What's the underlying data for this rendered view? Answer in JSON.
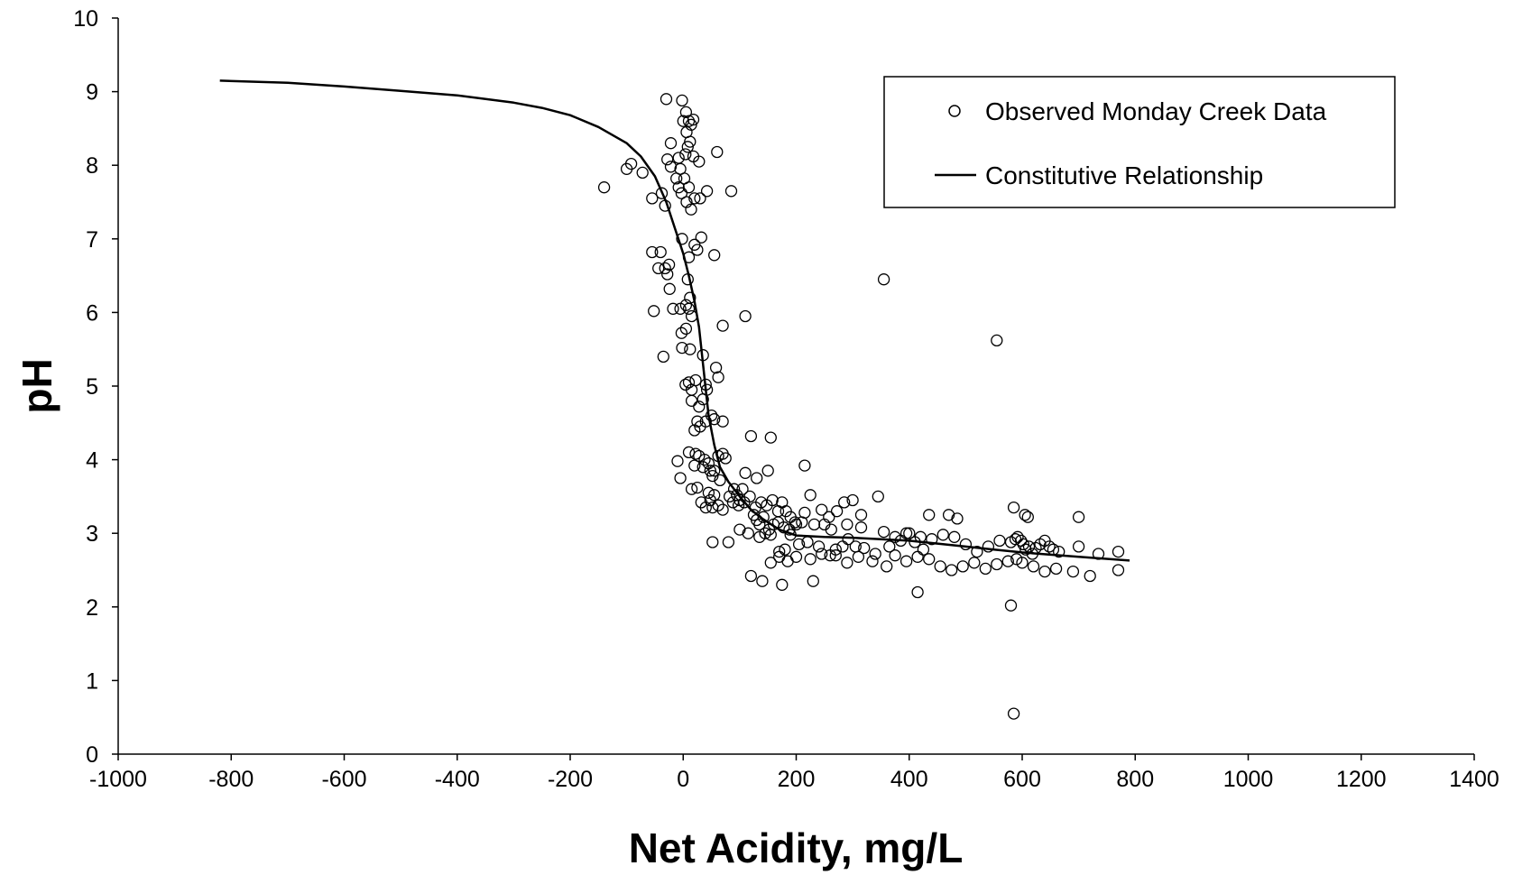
{
  "chart_data": {
    "type": "scatter",
    "title": "",
    "xlabel": "Net Acidity, mg/L",
    "ylabel": "pH",
    "xlim": [
      -1000,
      1400
    ],
    "ylim": [
      0,
      10
    ],
    "xticks": [
      -1000,
      -800,
      -600,
      -400,
      -200,
      0,
      200,
      400,
      600,
      800,
      1000,
      1200,
      1400
    ],
    "yticks": [
      0,
      1,
      2,
      3,
      4,
      5,
      6,
      7,
      8,
      9,
      10
    ],
    "grid": false,
    "legend_position": "top-right",
    "series": [
      {
        "name": "Observed Monday Creek Data",
        "type": "scatter",
        "marker": "open-circle",
        "points": [
          [
            -140,
            7.7
          ],
          [
            -100,
            7.95
          ],
          [
            -92,
            8.02
          ],
          [
            -72,
            7.9
          ],
          [
            -55,
            7.55
          ],
          [
            -38,
            7.62
          ],
          [
            -32,
            7.45
          ],
          [
            -28,
            8.08
          ],
          [
            -22,
            7.98
          ],
          [
            -12,
            7.82
          ],
          [
            -8,
            7.7
          ],
          [
            -3,
            7.62
          ],
          [
            2,
            7.82
          ],
          [
            6,
            7.5
          ],
          [
            10,
            7.7
          ],
          [
            14,
            7.4
          ],
          [
            20,
            7.55
          ],
          [
            30,
            7.55
          ],
          [
            42,
            7.65
          ],
          [
            85,
            7.65
          ],
          [
            -30,
            8.9
          ],
          [
            -2,
            8.88
          ],
          [
            5,
            8.72
          ],
          [
            10,
            8.6
          ],
          [
            14,
            8.55
          ],
          [
            18,
            8.62
          ],
          [
            0,
            8.6
          ],
          [
            6,
            8.45
          ],
          [
            -22,
            8.3
          ],
          [
            8,
            8.25
          ],
          [
            12,
            8.32
          ],
          [
            4,
            8.15
          ],
          [
            -8,
            8.1
          ],
          [
            -5,
            7.95
          ],
          [
            18,
            8.12
          ],
          [
            28,
            8.05
          ],
          [
            60,
            8.18
          ],
          [
            -55,
            6.82
          ],
          [
            -40,
            6.82
          ],
          [
            -32,
            6.6
          ],
          [
            -25,
            6.65
          ],
          [
            -28,
            6.52
          ],
          [
            -24,
            6.32
          ],
          [
            -44,
            6.6
          ],
          [
            -2,
            7.0
          ],
          [
            10,
            6.75
          ],
          [
            20,
            6.92
          ],
          [
            25,
            6.85
          ],
          [
            32,
            7.02
          ],
          [
            55,
            6.78
          ],
          [
            8,
            6.45
          ],
          [
            12,
            6.2
          ],
          [
            -52,
            6.02
          ],
          [
            -18,
            6.05
          ],
          [
            -5,
            6.05
          ],
          [
            5,
            6.1
          ],
          [
            10,
            6.05
          ],
          [
            15,
            5.95
          ],
          [
            110,
            5.95
          ],
          [
            70,
            5.82
          ],
          [
            -3,
            5.72
          ],
          [
            5,
            5.78
          ],
          [
            -35,
            5.4
          ],
          [
            -2,
            5.52
          ],
          [
            12,
            5.5
          ],
          [
            35,
            5.42
          ],
          [
            4,
            5.02
          ],
          [
            10,
            5.05
          ],
          [
            15,
            4.95
          ],
          [
            22,
            5.08
          ],
          [
            40,
            5.02
          ],
          [
            42,
            4.95
          ],
          [
            58,
            5.25
          ],
          [
            62,
            5.12
          ],
          [
            15,
            4.8
          ],
          [
            28,
            4.72
          ],
          [
            35,
            4.82
          ],
          [
            25,
            4.52
          ],
          [
            40,
            4.52
          ],
          [
            50,
            4.6
          ],
          [
            55,
            4.55
          ],
          [
            70,
            4.52
          ],
          [
            20,
            4.4
          ],
          [
            30,
            4.45
          ],
          [
            -10,
            3.98
          ],
          [
            -5,
            3.75
          ],
          [
            10,
            4.1
          ],
          [
            22,
            4.08
          ],
          [
            28,
            4.05
          ],
          [
            38,
            4.0
          ],
          [
            45,
            3.95
          ],
          [
            55,
            3.85
          ],
          [
            62,
            4.05
          ],
          [
            75,
            4.02
          ],
          [
            70,
            4.08
          ],
          [
            20,
            3.92
          ],
          [
            35,
            3.9
          ],
          [
            48,
            3.85
          ],
          [
            52,
            3.78
          ],
          [
            15,
            3.6
          ],
          [
            25,
            3.62
          ],
          [
            45,
            3.55
          ],
          [
            55,
            3.52
          ],
          [
            65,
            3.72
          ],
          [
            90,
            3.6
          ],
          [
            95,
            3.52
          ],
          [
            100,
            3.45
          ],
          [
            105,
            3.6
          ],
          [
            110,
            3.82
          ],
          [
            130,
            3.75
          ],
          [
            150,
            3.85
          ],
          [
            120,
            4.32
          ],
          [
            155,
            4.3
          ],
          [
            215,
            3.92
          ],
          [
            32,
            3.42
          ],
          [
            40,
            3.35
          ],
          [
            48,
            3.45
          ],
          [
            52,
            3.35
          ],
          [
            62,
            3.38
          ],
          [
            70,
            3.32
          ],
          [
            82,
            3.5
          ],
          [
            88,
            3.42
          ],
          [
            98,
            3.38
          ],
          [
            108,
            3.42
          ],
          [
            118,
            3.5
          ],
          [
            128,
            3.35
          ],
          [
            138,
            3.42
          ],
          [
            148,
            3.38
          ],
          [
            158,
            3.45
          ],
          [
            168,
            3.3
          ],
          [
            175,
            3.42
          ],
          [
            182,
            3.3
          ],
          [
            190,
            3.22
          ],
          [
            198,
            3.15
          ],
          [
            215,
            3.28
          ],
          [
            225,
            3.52
          ],
          [
            245,
            3.32
          ],
          [
            258,
            3.22
          ],
          [
            272,
            3.3
          ],
          [
            285,
            3.42
          ],
          [
            300,
            3.45
          ],
          [
            315,
            3.25
          ],
          [
            345,
            3.5
          ],
          [
            125,
            3.25
          ],
          [
            130,
            3.18
          ],
          [
            135,
            3.12
          ],
          [
            142,
            3.22
          ],
          [
            152,
            3.05
          ],
          [
            160,
            3.12
          ],
          [
            168,
            3.15
          ],
          [
            178,
            3.08
          ],
          [
            188,
            3.05
          ],
          [
            200,
            3.12
          ],
          [
            210,
            3.15
          ],
          [
            232,
            3.12
          ],
          [
            250,
            3.12
          ],
          [
            262,
            3.05
          ],
          [
            290,
            3.12
          ],
          [
            315,
            3.08
          ],
          [
            355,
            3.02
          ],
          [
            52,
            2.88
          ],
          [
            80,
            2.88
          ],
          [
            100,
            3.05
          ],
          [
            115,
            3.0
          ],
          [
            135,
            2.95
          ],
          [
            145,
            3.0
          ],
          [
            155,
            2.98
          ],
          [
            170,
            2.75
          ],
          [
            180,
            2.78
          ],
          [
            190,
            2.98
          ],
          [
            205,
            2.85
          ],
          [
            220,
            2.88
          ],
          [
            240,
            2.82
          ],
          [
            260,
            2.7
          ],
          [
            270,
            2.78
          ],
          [
            282,
            2.82
          ],
          [
            292,
            2.92
          ],
          [
            305,
            2.82
          ],
          [
            320,
            2.8
          ],
          [
            340,
            2.72
          ],
          [
            365,
            2.82
          ],
          [
            375,
            2.95
          ],
          [
            385,
            2.9
          ],
          [
            395,
            3.0
          ],
          [
            410,
            2.88
          ],
          [
            425,
            2.78
          ],
          [
            440,
            2.92
          ],
          [
            460,
            2.98
          ],
          [
            480,
            2.95
          ],
          [
            500,
            2.85
          ],
          [
            520,
            2.75
          ],
          [
            540,
            2.82
          ],
          [
            560,
            2.9
          ],
          [
            580,
            2.88
          ],
          [
            588,
            2.92
          ],
          [
            592,
            2.95
          ],
          [
            598,
            2.9
          ],
          [
            602,
            2.85
          ],
          [
            606,
            2.78
          ],
          [
            612,
            2.82
          ],
          [
            618,
            2.72
          ],
          [
            624,
            2.8
          ],
          [
            632,
            2.85
          ],
          [
            640,
            2.9
          ],
          [
            648,
            2.82
          ],
          [
            655,
            2.78
          ],
          [
            665,
            2.75
          ],
          [
            700,
            2.82
          ],
          [
            735,
            2.72
          ],
          [
            770,
            2.75
          ],
          [
            770,
            2.5
          ],
          [
            720,
            2.42
          ],
          [
            690,
            2.48
          ],
          [
            660,
            2.52
          ],
          [
            640,
            2.48
          ],
          [
            620,
            2.55
          ],
          [
            600,
            2.6
          ],
          [
            590,
            2.65
          ],
          [
            575,
            2.62
          ],
          [
            555,
            2.58
          ],
          [
            535,
            2.52
          ],
          [
            515,
            2.6
          ],
          [
            495,
            2.55
          ],
          [
            475,
            2.5
          ],
          [
            455,
            2.55
          ],
          [
            435,
            2.65
          ],
          [
            415,
            2.68
          ],
          [
            395,
            2.62
          ],
          [
            375,
            2.7
          ],
          [
            360,
            2.55
          ],
          [
            335,
            2.62
          ],
          [
            310,
            2.68
          ],
          [
            290,
            2.6
          ],
          [
            270,
            2.7
          ],
          [
            245,
            2.72
          ],
          [
            225,
            2.65
          ],
          [
            200,
            2.68
          ],
          [
            185,
            2.62
          ],
          [
            170,
            2.68
          ],
          [
            155,
            2.6
          ],
          [
            140,
            2.35
          ],
          [
            120,
            2.42
          ],
          [
            175,
            2.3
          ],
          [
            230,
            2.35
          ],
          [
            415,
            2.2
          ],
          [
            585,
            3.35
          ],
          [
            605,
            3.25
          ],
          [
            610,
            3.22
          ],
          [
            700,
            3.22
          ],
          [
            435,
            3.25
          ],
          [
            470,
            3.25
          ],
          [
            485,
            3.2
          ],
          [
            400,
            3.0
          ],
          [
            420,
            2.95
          ],
          [
            355,
            6.45
          ],
          [
            555,
            5.62
          ],
          [
            580,
            2.02
          ],
          [
            585,
            0.55
          ]
        ]
      },
      {
        "name": "Constitutive Relationship",
        "type": "line",
        "points": [
          [
            -820,
            9.15
          ],
          [
            -700,
            9.12
          ],
          [
            -600,
            9.07
          ],
          [
            -500,
            9.01
          ],
          [
            -400,
            8.95
          ],
          [
            -300,
            8.85
          ],
          [
            -250,
            8.78
          ],
          [
            -200,
            8.68
          ],
          [
            -150,
            8.52
          ],
          [
            -100,
            8.3
          ],
          [
            -75,
            8.12
          ],
          [
            -50,
            7.85
          ],
          [
            -30,
            7.5
          ],
          [
            -15,
            7.15
          ],
          [
            0,
            6.8
          ],
          [
            10,
            6.5
          ],
          [
            20,
            6.15
          ],
          [
            28,
            5.8
          ],
          [
            35,
            5.3
          ],
          [
            40,
            4.95
          ],
          [
            45,
            4.6
          ],
          [
            55,
            4.2
          ],
          [
            65,
            3.9
          ],
          [
            80,
            3.7
          ],
          [
            100,
            3.5
          ],
          [
            120,
            3.32
          ],
          [
            140,
            3.2
          ],
          [
            170,
            3.05
          ],
          [
            200,
            2.97
          ],
          [
            250,
            2.95
          ],
          [
            300,
            2.94
          ],
          [
            350,
            2.92
          ],
          [
            400,
            2.9
          ],
          [
            450,
            2.86
          ],
          [
            500,
            2.82
          ],
          [
            550,
            2.78
          ],
          [
            600,
            2.74
          ],
          [
            650,
            2.71
          ],
          [
            700,
            2.68
          ],
          [
            790,
            2.63
          ]
        ]
      }
    ]
  }
}
